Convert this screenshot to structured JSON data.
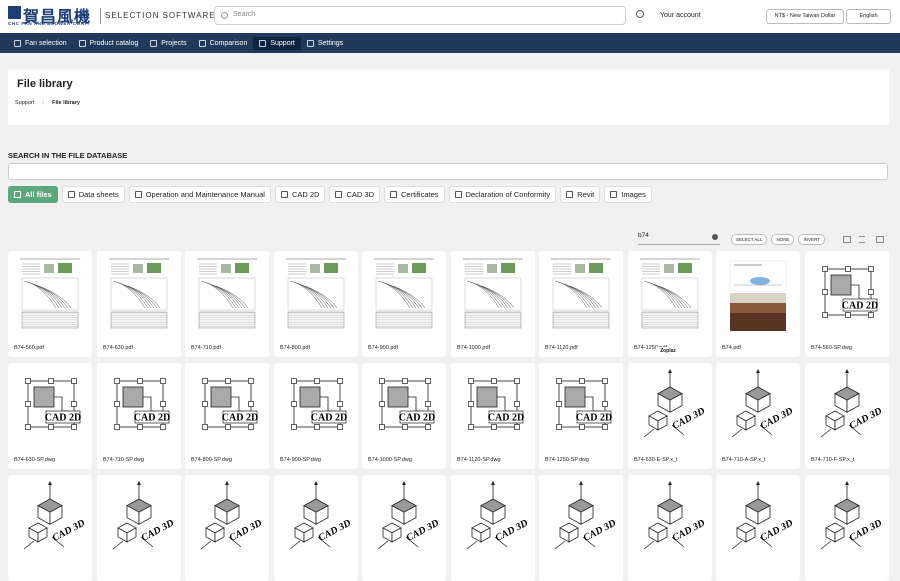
{
  "header": {
    "logo_text": "賀昌風機",
    "logo_subtitle": "CHC FAN AND BLOWER CORP.",
    "app_name": "SELECTION SOFTWARE",
    "search_placeholder": "Search",
    "account": "Your account",
    "currency": "NT$ - New Taiwan Dollar",
    "language": "English"
  },
  "nav": [
    "Fan selection",
    "Product catalog",
    "Projects",
    "Comparison",
    "Support",
    "Settings"
  ],
  "nav_active": 4,
  "page": {
    "title": "File library",
    "breadcrumb": [
      "Support",
      "File library"
    ]
  },
  "search": {
    "heading": "SEARCH IN THE FILE DATABASE"
  },
  "tabs": [
    "All files",
    "Data sheets",
    "Operation and Maintenance Manual",
    "CAD 2D",
    "CAD 3D",
    "Certificates",
    "Declaration of Conformity",
    "Revit",
    "Images"
  ],
  "tab_active": 0,
  "filter": {
    "query": "b74",
    "buttons": [
      "SELECT ALL",
      "NONE",
      "INVERT"
    ]
  },
  "files": [
    {
      "name": "B74-560.pdf",
      "kind": "datasheet"
    },
    {
      "name": "B74-630.pdf",
      "kind": "datasheet"
    },
    {
      "name": "B74-710.pdf",
      "kind": "datasheet"
    },
    {
      "name": "B74-800.pdf",
      "kind": "datasheet"
    },
    {
      "name": "B74-900.pdf",
      "kind": "datasheet"
    },
    {
      "name": "B74-1000.pdf",
      "kind": "datasheet"
    },
    {
      "name": "B74-1120.pdf",
      "kind": "datasheet"
    },
    {
      "name": "B74-1250.pdf",
      "kind": "datasheet"
    },
    {
      "name": "B74.pdf",
      "kind": "image"
    },
    {
      "name": "B74-560-SP.dwg",
      "kind": "cad2d"
    },
    {
      "name": "B74-630-SP.dwg",
      "kind": "cad2d"
    },
    {
      "name": "B74-710-SP.dwg",
      "kind": "cad2d"
    },
    {
      "name": "B74-800-SP.dwg",
      "kind": "cad2d"
    },
    {
      "name": "B74-900-SP.dwg",
      "kind": "cad2d"
    },
    {
      "name": "B74-1000-SP.dwg",
      "kind": "cad2d"
    },
    {
      "name": "B74-1120-SP.dwg",
      "kind": "cad2d"
    },
    {
      "name": "B74-1250-SP.dwg",
      "kind": "cad2d"
    },
    {
      "name": "B74-630-E-SP.x_t",
      "kind": "cad3d"
    },
    {
      "name": "B74-710-A-SP.x_t",
      "kind": "cad3d"
    },
    {
      "name": "B74-710-F-SP.x_t",
      "kind": "cad3d"
    },
    {
      "kind": "cad3d"
    },
    {
      "kind": "cad3d"
    },
    {
      "kind": "cad3d"
    },
    {
      "kind": "cad3d"
    },
    {
      "kind": "cad3d"
    },
    {
      "kind": "cad3d"
    },
    {
      "kind": "cad3d"
    },
    {
      "kind": "cad3d"
    },
    {
      "kind": "cad3d"
    },
    {
      "kind": "cad3d"
    }
  ],
  "tooltip": {
    "file": 7,
    "text": "Zoplaz"
  }
}
